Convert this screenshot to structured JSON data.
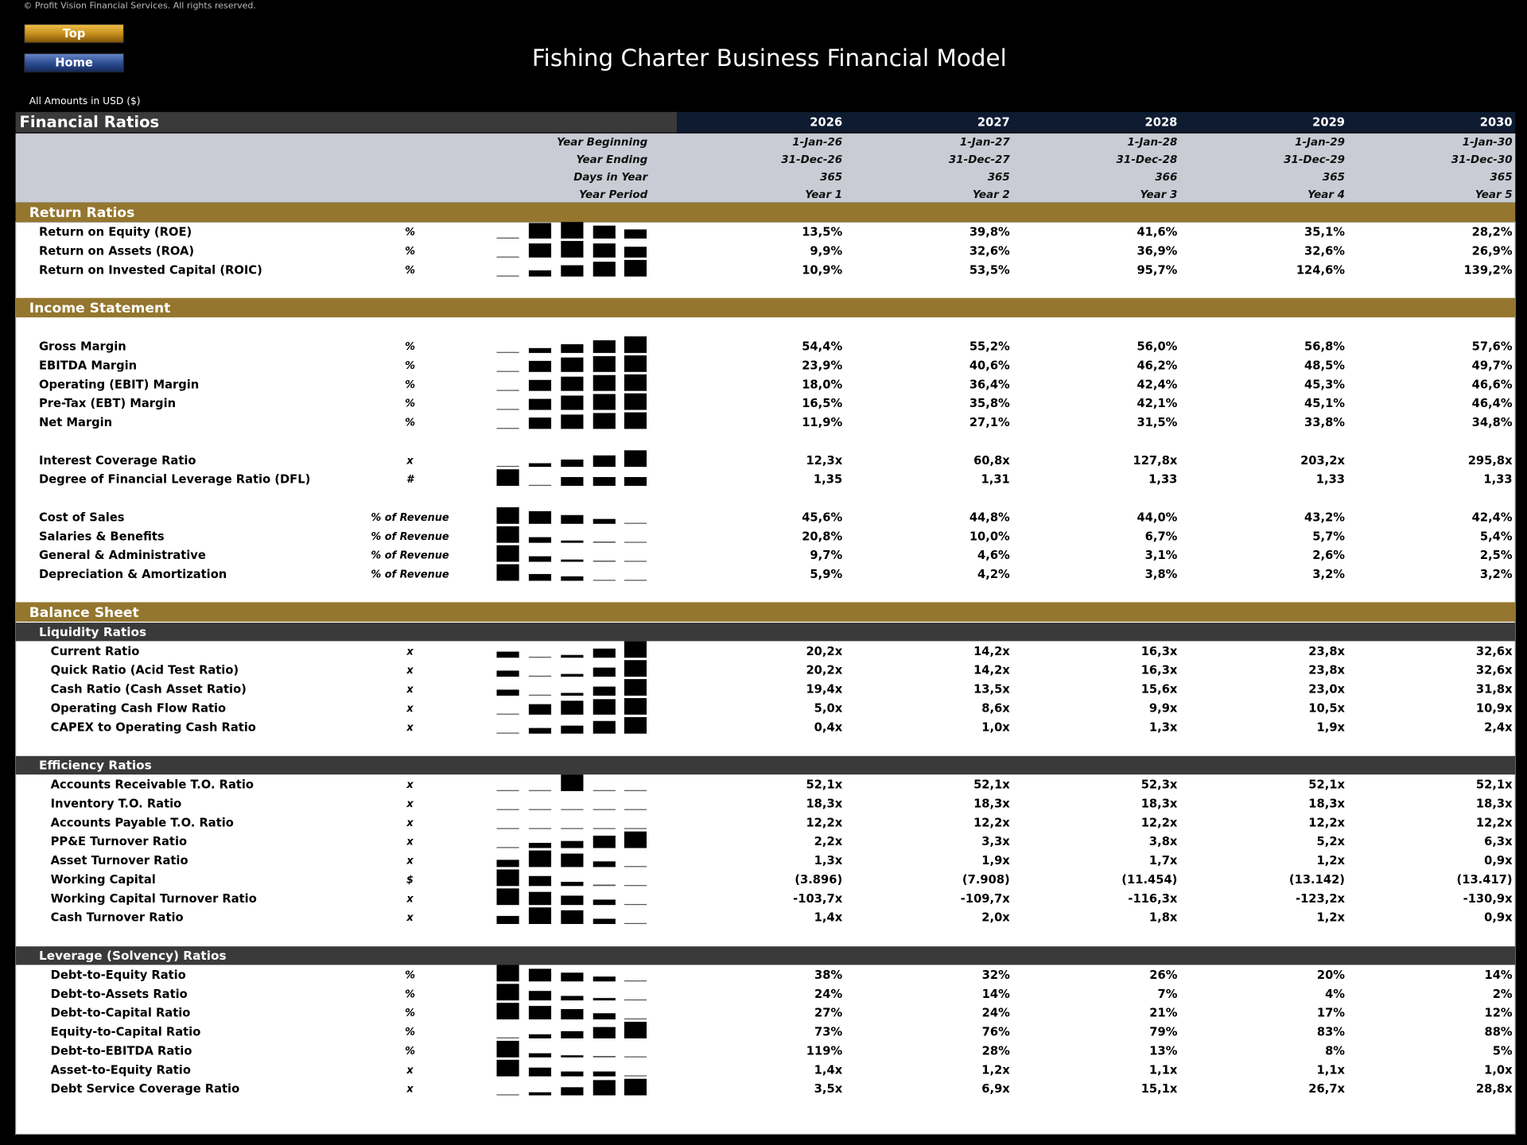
{
  "copyright": "© Profit Vision Financial Services. All rights reserved.",
  "buttons": [
    "Top",
    "Home"
  ],
  "title": "Fishing Charter Business Financial Model",
  "currency_note": "All Amounts in  USD ($)",
  "sheet_title": "Financial Ratios",
  "years": [
    "2026",
    "2027",
    "2028",
    "2029",
    "2030"
  ],
  "header_rows": [
    {
      "label": "Year Beginning",
      "values": [
        "1-Jan-26",
        "1-Jan-27",
        "1-Jan-28",
        "1-Jan-29",
        "1-Jan-30"
      ]
    },
    {
      "label": "Year Ending",
      "values": [
        "31-Dec-26",
        "31-Dec-27",
        "31-Dec-28",
        "31-Dec-29",
        "31-Dec-30"
      ]
    },
    {
      "label": "Days in Year",
      "values": [
        "365",
        "365",
        "366",
        "365",
        "365"
      ]
    },
    {
      "label": "Year Period",
      "values": [
        "Year 1",
        "Year 2",
        "Year 3",
        "Year 4",
        "Year 5"
      ]
    }
  ],
  "sections": [
    {
      "title": "Return Ratios",
      "blocks": [
        {
          "rows": [
            {
              "label": "Return on Equity (ROE)",
              "unit": "%",
              "values": [
                "13,5%",
                "39,8%",
                "41,6%",
                "35,1%",
                "28,2%"
              ]
            },
            {
              "label": "Return on Assets (ROA)",
              "unit": "%",
              "values": [
                "9,9%",
                "32,6%",
                "36,9%",
                "32,6%",
                "26,9%"
              ]
            },
            {
              "label": "Return on Invested Capital (ROIC)",
              "unit": "%",
              "values": [
                "10,9%",
                "53,5%",
                "95,7%",
                "124,6%",
                "139,2%"
              ]
            }
          ]
        }
      ]
    },
    {
      "title": "Income Statement",
      "blocks": [
        {
          "rows": [
            {
              "label": "Gross Margin",
              "unit": "%",
              "values": [
                "54,4%",
                "55,2%",
                "56,0%",
                "56,8%",
                "57,6%"
              ]
            },
            {
              "label": "EBITDA Margin",
              "unit": "%",
              "values": [
                "23,9%",
                "40,6%",
                "46,2%",
                "48,5%",
                "49,7%"
              ]
            },
            {
              "label": "Operating (EBIT) Margin",
              "unit": "%",
              "values": [
                "18,0%",
                "36,4%",
                "42,4%",
                "45,3%",
                "46,6%"
              ]
            },
            {
              "label": "Pre-Tax (EBT) Margin",
              "unit": "%",
              "values": [
                "16,5%",
                "35,8%",
                "42,1%",
                "45,1%",
                "46,4%"
              ]
            },
            {
              "label": "Net Margin",
              "unit": "%",
              "values": [
                "11,9%",
                "27,1%",
                "31,5%",
                "33,8%",
                "34,8%"
              ]
            }
          ]
        },
        {
          "rows": [
            {
              "label": "Interest Coverage Ratio",
              "unit": "x",
              "values": [
                "12,3x",
                "60,8x",
                "127,8x",
                "203,2x",
                "295,8x"
              ]
            },
            {
              "label": "Degree of Financial Leverage Ratio (DFL)",
              "unit": "#",
              "values": [
                "1,35",
                "1,31",
                "1,33",
                "1,33",
                "1,33"
              ]
            }
          ]
        },
        {
          "rows": [
            {
              "label": "Cost of Sales",
              "unit": "% of Revenue",
              "values": [
                "45,6%",
                "44,8%",
                "44,0%",
                "43,2%",
                "42,4%"
              ]
            },
            {
              "label": "Salaries & Benefits",
              "unit": "% of Revenue",
              "values": [
                "20,8%",
                "10,0%",
                "6,7%",
                "5,7%",
                "5,4%"
              ]
            },
            {
              "label": "General & Administrative",
              "unit": "% of Revenue",
              "values": [
                "9,7%",
                "4,6%",
                "3,1%",
                "2,6%",
                "2,5%"
              ]
            },
            {
              "label": "Depreciation & Amortization",
              "unit": "% of Revenue",
              "values": [
                "5,9%",
                "4,2%",
                "3,8%",
                "3,2%",
                "3,2%"
              ]
            }
          ]
        }
      ]
    },
    {
      "title": "Balance Sheet",
      "blocks": [
        {
          "subtitle": "Liquidity Ratios",
          "rows": [
            {
              "label": "Current Ratio",
              "unit": "x",
              "values": [
                "20,2x",
                "14,2x",
                "16,3x",
                "23,8x",
                "32,6x"
              ]
            },
            {
              "label": "Quick Ratio (Acid Test Ratio)",
              "unit": "x",
              "values": [
                "20,2x",
                "14,2x",
                "16,3x",
                "23,8x",
                "32,6x"
              ]
            },
            {
              "label": "Cash Ratio (Cash Asset Ratio)",
              "unit": "x",
              "values": [
                "19,4x",
                "13,5x",
                "15,6x",
                "23,0x",
                "31,8x"
              ]
            },
            {
              "label": "Operating Cash Flow Ratio",
              "unit": "x",
              "values": [
                "5,0x",
                "8,6x",
                "9,9x",
                "10,5x",
                "10,9x"
              ]
            },
            {
              "label": "CAPEX to Operating Cash Ratio",
              "unit": "x",
              "values": [
                "0,4x",
                "1,0x",
                "1,3x",
                "1,9x",
                "2,4x"
              ]
            }
          ]
        },
        {
          "subtitle": "Efficiency Ratios",
          "rows": [
            {
              "label": "Accounts Receivable T.O. Ratio",
              "unit": "x",
              "values": [
                "52,1x",
                "52,1x",
                "52,3x",
                "52,1x",
                "52,1x"
              ]
            },
            {
              "label": "Inventory T.O. Ratio",
              "unit": "x",
              "values": [
                "18,3x",
                "18,3x",
                "18,3x",
                "18,3x",
                "18,3x"
              ]
            },
            {
              "label": "Accounts Payable T.O. Ratio",
              "unit": "x",
              "values": [
                "12,2x",
                "12,2x",
                "12,2x",
                "12,2x",
                "12,2x"
              ]
            },
            {
              "label": "PP&E Turnover Ratio",
              "unit": "x",
              "values": [
                "2,2x",
                "3,3x",
                "3,8x",
                "5,2x",
                "6,3x"
              ]
            },
            {
              "label": "Asset Turnover Ratio",
              "unit": "x",
              "values": [
                "1,3x",
                "1,9x",
                "1,7x",
                "1,2x",
                "0,9x"
              ]
            },
            {
              "label": "Working Capital",
              "unit": "$",
              "values": [
                "(3.896)",
                "(7.908)",
                "(11.454)",
                "(13.142)",
                "(13.417)"
              ]
            },
            {
              "label": "Working Capital Turnover Ratio",
              "unit": "x",
              "values": [
                "-103,7x",
                "-109,7x",
                "-116,3x",
                "-123,2x",
                "-130,9x"
              ]
            },
            {
              "label": "Cash Turnover Ratio",
              "unit": "x",
              "values": [
                "1,4x",
                "2,0x",
                "1,8x",
                "1,2x",
                "0,9x"
              ]
            }
          ]
        },
        {
          "subtitle": "Leverage (Solvency) Ratios",
          "rows": [
            {
              "label": "Debt-to-Equity Ratio",
              "unit": "%",
              "values": [
                "38%",
                "32%",
                "26%",
                "20%",
                "14%"
              ]
            },
            {
              "label": "Debt-to-Assets Ratio",
              "unit": "%",
              "values": [
                "24%",
                "14%",
                "7%",
                "4%",
                "2%"
              ]
            },
            {
              "label": "Debt-to-Capital Ratio",
              "unit": "%",
              "values": [
                "27%",
                "24%",
                "21%",
                "17%",
                "12%"
              ]
            },
            {
              "label": "Equity-to-Capital Ratio",
              "unit": "%",
              "values": [
                "73%",
                "76%",
                "79%",
                "83%",
                "88%"
              ]
            },
            {
              "label": "Debt-to-EBITDA Ratio",
              "unit": "%",
              "values": [
                "119%",
                "28%",
                "13%",
                "8%",
                "5%"
              ]
            },
            {
              "label": "Asset-to-Equity Ratio",
              "unit": "x",
              "values": [
                "1,4x",
                "1,2x",
                "1,1x",
                "1,1x",
                "1,0x"
              ]
            },
            {
              "label": "Debt Service Coverage Ratio",
              "unit": "x",
              "values": [
                "3,5x",
                "6,9x",
                "15,1x",
                "26,7x",
                "28,8x"
              ]
            }
          ]
        }
      ]
    }
  ]
}
